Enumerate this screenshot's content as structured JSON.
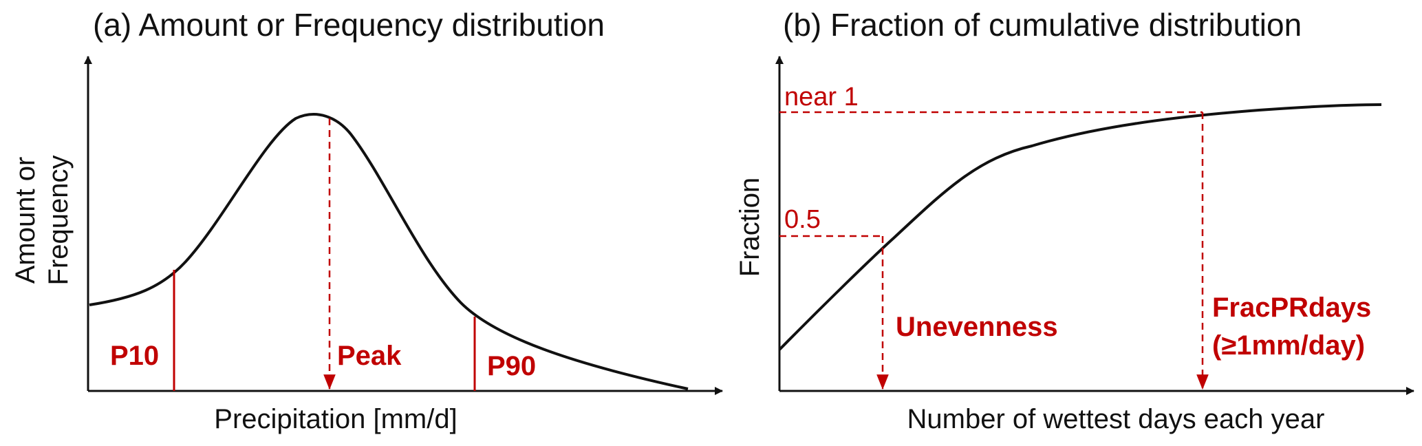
{
  "panel_a": {
    "title": "(a) Amount or Frequency distribution",
    "ylabel_line1": "Amount or",
    "ylabel_line2": "Frequency",
    "xlabel": "Precipitation [mm/d]",
    "marker_p10": "P10",
    "marker_peak": "Peak",
    "marker_p90": "P90"
  },
  "panel_b": {
    "title": "(b) Fraction of cumulative distribution",
    "ylabel": "Fraction",
    "xlabel": "Number of wettest days each year",
    "level_high": "near 1",
    "level_half": "0.5",
    "marker_unevenness": "Unevenness",
    "marker_fracprdays_line1": "FracPRdays",
    "marker_fracprdays_line2": "(≥1mm/day)"
  },
  "colors": {
    "annotation": "#c00000",
    "curve": "#111111"
  }
}
